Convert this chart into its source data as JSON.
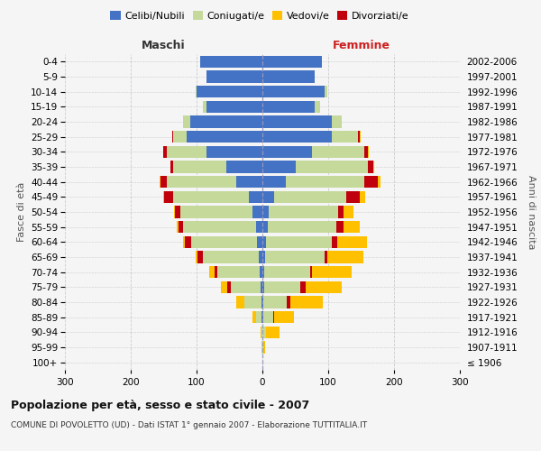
{
  "age_groups": [
    "100+",
    "95-99",
    "90-94",
    "85-89",
    "80-84",
    "75-79",
    "70-74",
    "65-69",
    "60-64",
    "55-59",
    "50-54",
    "45-49",
    "40-44",
    "35-39",
    "30-34",
    "25-29",
    "20-24",
    "15-19",
    "10-14",
    "5-9",
    "0-4"
  ],
  "birth_years": [
    "≤ 1906",
    "1907-1911",
    "1912-1916",
    "1917-1921",
    "1922-1926",
    "1927-1931",
    "1932-1936",
    "1937-1941",
    "1942-1946",
    "1947-1951",
    "1952-1956",
    "1957-1961",
    "1962-1966",
    "1967-1971",
    "1972-1976",
    "1977-1981",
    "1982-1986",
    "1987-1991",
    "1992-1996",
    "1997-2001",
    "2002-2006"
  ],
  "males": {
    "celibi": [
      0,
      0,
      0,
      1,
      2,
      3,
      4,
      5,
      8,
      10,
      15,
      20,
      40,
      55,
      85,
      115,
      110,
      85,
      100,
      85,
      95
    ],
    "coniugati": [
      0,
      1,
      2,
      8,
      25,
      45,
      65,
      85,
      100,
      110,
      110,
      115,
      105,
      80,
      60,
      20,
      10,
      5,
      2,
      0,
      0
    ],
    "vedovi": [
      0,
      0,
      1,
      5,
      12,
      10,
      8,
      4,
      3,
      2,
      1,
      1,
      1,
      0,
      0,
      0,
      0,
      0,
      0,
      0,
      0
    ],
    "divorziati": [
      0,
      0,
      0,
      1,
      1,
      5,
      4,
      8,
      10,
      8,
      8,
      15,
      10,
      5,
      5,
      2,
      1,
      0,
      0,
      0,
      0
    ]
  },
  "females": {
    "nubili": [
      0,
      0,
      0,
      1,
      2,
      3,
      3,
      4,
      6,
      8,
      10,
      18,
      35,
      50,
      75,
      105,
      105,
      80,
      95,
      80,
      90
    ],
    "coniugate": [
      0,
      1,
      5,
      15,
      35,
      55,
      70,
      90,
      100,
      105,
      105,
      110,
      120,
      110,
      80,
      40,
      15,
      8,
      3,
      0,
      0
    ],
    "vedove": [
      0,
      3,
      20,
      30,
      50,
      55,
      60,
      55,
      45,
      25,
      15,
      8,
      5,
      2,
      2,
      1,
      0,
      0,
      0,
      0,
      0
    ],
    "divorziate": [
      0,
      0,
      1,
      2,
      5,
      8,
      3,
      5,
      8,
      10,
      8,
      20,
      20,
      8,
      5,
      3,
      1,
      0,
      0,
      0,
      0
    ]
  },
  "colors": {
    "celibi": "#4472c4",
    "coniugati": "#c5d99b",
    "vedovi": "#ffc000",
    "divorziati": "#c0000c"
  },
  "xlim": 300,
  "title": "Popolazione per età, sesso e stato civile - 2007",
  "subtitle": "COMUNE DI POVOLETTO (UD) - Dati ISTAT 1° gennaio 2007 - Elaborazione TUTTITALIA.IT",
  "ylabel_left": "Fasce di età",
  "ylabel_right": "Anni di nascita",
  "xlabel_maschi": "Maschi",
  "xlabel_femmine": "Femmine",
  "bg_color": "#f5f5f5",
  "grid_color": "#cccccc"
}
